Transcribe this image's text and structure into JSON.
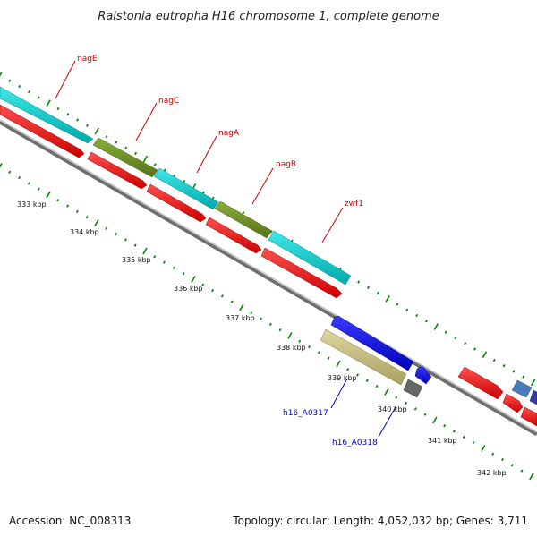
{
  "header": {
    "title": "Ralstonia eutropha H16 chromosome 1, complete genome"
  },
  "footer": {
    "accession": "Accession: NC_008313",
    "summary": "Topology: circular; Length: 4,052,032 bp; Genes: 3,711"
  },
  "colors": {
    "backbone": "#8a8a8a",
    "cds_forward": "#ff0000",
    "cyan": "#00cccc",
    "olive": "#6b8e23",
    "blue": "#0000ee",
    "khaki": "#c8c080",
    "gray": "#666666",
    "steel": "#4a7cb8",
    "navy": "#3a3aa0",
    "tick": "#008800",
    "label_red": "#cc0000",
    "label_blue": "#0000cc"
  },
  "axis": {
    "ticks": [
      "333 kbp",
      "334 kbp",
      "335 kbp",
      "336 kbp",
      "337 kbp",
      "338 kbp",
      "339 kbp",
      "340 kbp",
      "341 kbp",
      "342 kbp"
    ]
  },
  "genes": {
    "labeled": [
      {
        "name": "nagE",
        "color": "label_red"
      },
      {
        "name": "nagC",
        "color": "label_red"
      },
      {
        "name": "nagA",
        "color": "label_red"
      },
      {
        "name": "nagB",
        "color": "label_red"
      },
      {
        "name": "zwf1",
        "color": "label_red"
      },
      {
        "name": "h16_A0317",
        "color": "label_blue"
      },
      {
        "name": "h16_A0318",
        "color": "label_blue"
      }
    ]
  }
}
